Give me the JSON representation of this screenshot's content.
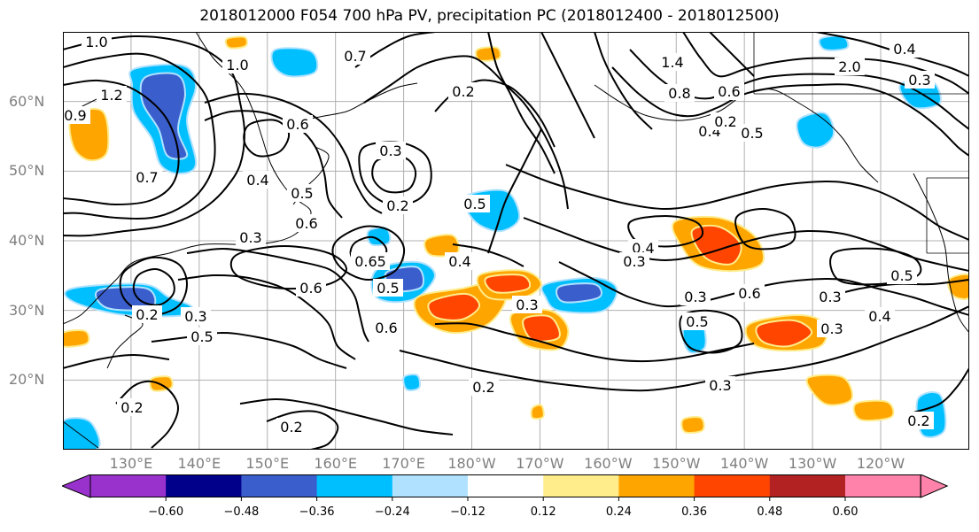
{
  "title": "2018012000 F054 700 hPa PV, precipitation PC (2018012400 - 2018012500)",
  "map": {
    "lon_range": [
      120,
      253
    ],
    "lat_range": [
      10,
      70
    ],
    "lat_labels": [
      "60°N",
      "50°N",
      "40°N",
      "30°N",
      "20°N"
    ],
    "lon_labels": [
      "130°E",
      "140°E",
      "150°E",
      "160°E",
      "170°E",
      "180°W",
      "170°W",
      "160°W",
      "150°W",
      "140°W",
      "130°W",
      "120°W"
    ],
    "contour_color": "#000000",
    "gridline_color": "#b0b0b0",
    "contour_labels": [
      {
        "text": "1.0"
      },
      {
        "text": "1.0"
      },
      {
        "text": "0.7"
      },
      {
        "text": "1.2"
      },
      {
        "text": "0.9"
      },
      {
        "text": "0.6"
      },
      {
        "text": "0.7"
      },
      {
        "text": "0.4"
      },
      {
        "text": "0.5"
      },
      {
        "text": "0.6"
      },
      {
        "text": "0.3"
      },
      {
        "text": "0.3"
      },
      {
        "text": "0.2"
      },
      {
        "text": "0.65"
      },
      {
        "text": "0.5"
      },
      {
        "text": "0.6"
      },
      {
        "text": "0.3"
      },
      {
        "text": "0.2"
      },
      {
        "text": "0.5"
      },
      {
        "text": "0.6"
      },
      {
        "text": "0.2"
      },
      {
        "text": "0.2"
      },
      {
        "text": "0.2"
      },
      {
        "text": "0.3"
      },
      {
        "text": "0.2"
      },
      {
        "text": "0.5"
      },
      {
        "text": "0.4"
      },
      {
        "text": "1.4"
      },
      {
        "text": "0.8"
      },
      {
        "text": "0.6"
      },
      {
        "text": "0.4"
      },
      {
        "text": "0.2"
      },
      {
        "text": "0.5"
      },
      {
        "text": "0.4"
      },
      {
        "text": "0.3"
      },
      {
        "text": "0.3"
      },
      {
        "text": "0.3"
      },
      {
        "text": "0.5"
      },
      {
        "text": "0.6"
      },
      {
        "text": "0.3"
      },
      {
        "text": "0.3"
      },
      {
        "text": "0.4"
      },
      {
        "text": "0.5"
      },
      {
        "text": "0.2"
      },
      {
        "text": "0.4"
      },
      {
        "text": "2.0"
      },
      {
        "text": "0.3"
      }
    ]
  },
  "colorbar": {
    "ticks": [
      "−0.60",
      "−0.48",
      "−0.36",
      "−0.24",
      "−0.12",
      "0.12",
      "0.24",
      "0.36",
      "0.48",
      "0.60"
    ],
    "colors": [
      "#9932cc",
      "#00008b",
      "#3a5fcd",
      "#00bfff",
      "#b0e2ff",
      "#ffffff",
      "#ffec8b",
      "#ffa500",
      "#ff4500",
      "#b22222",
      "#ff82ab",
      "#ff82ab"
    ]
  },
  "precip_colors": {
    "neg_strong": "#3a5fcd",
    "neg_mid": "#00bfff",
    "neg_weak": "#b0e2ff",
    "pos_weak": "#ffec8b",
    "pos_mid": "#ffa500",
    "pos_strong": "#ff4500"
  }
}
